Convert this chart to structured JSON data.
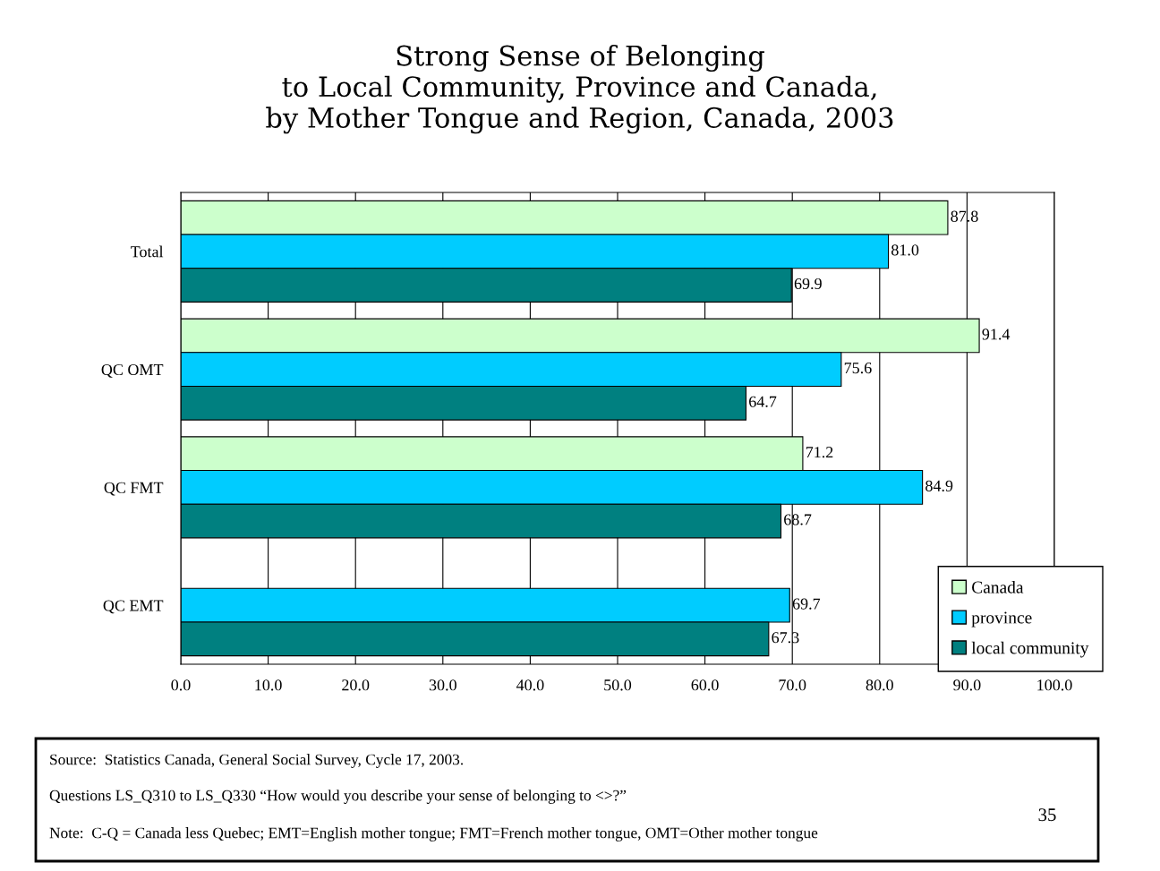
{
  "chart_data": {
    "type": "bar",
    "orientation": "horizontal",
    "title": "Strong Sense of Belonging\nto Local Community, Province and Canada,\nby Mother Tongue and Region, Canada, 2003",
    "categories": [
      "Total",
      "QC OMT",
      "QC FMT",
      "QC EMT"
    ],
    "series": [
      {
        "name": "Canada",
        "color": "#ccffcc",
        "values": [
          87.8,
          91.4,
          71.2,
          null
        ],
        "value_labels": [
          "87.8",
          "91.4",
          "71.2",
          null
        ]
      },
      {
        "name": "province",
        "color": "#00ccff",
        "values": [
          81.0,
          75.6,
          84.9,
          69.7
        ],
        "value_labels": [
          "81.0",
          "75.6",
          "84.9",
          "69.7"
        ]
      },
      {
        "name": "local community",
        "color": "#008080",
        "values": [
          69.9,
          64.7,
          68.7,
          67.3
        ],
        "value_labels": [
          "69.9",
          "64.7",
          "68.7",
          "67.3"
        ]
      }
    ],
    "xlim": [
      0,
      100
    ],
    "xticks": [
      {
        "value": 0,
        "label": "0.0"
      },
      {
        "value": 10,
        "label": "10.0"
      },
      {
        "value": 20,
        "label": "20.0"
      },
      {
        "value": 30,
        "label": "30.0"
      },
      {
        "value": 40,
        "label": "40.0"
      },
      {
        "value": 50,
        "label": "50.0"
      },
      {
        "value": 60,
        "label": "60.0"
      },
      {
        "value": 70,
        "label": "70.0"
      },
      {
        "value": 80,
        "label": "80.0"
      },
      {
        "value": 90,
        "label": "90.0"
      },
      {
        "value": 100,
        "label": "100.0"
      }
    ],
    "grid": "x",
    "legend": "bottom right",
    "annotations": [
      "Source:  Statistics Canada, General Social Survey, Cycle 17, 2003.",
      "Questions LS_Q310 to LS_Q330 “How would you describe your sense of belonging to <>?”",
      "Note:  C-Q = Canada less Quebec; EMT=English mother tongue; FMT=French mother tongue, OMT=Other mother tongue",
      "35"
    ]
  }
}
